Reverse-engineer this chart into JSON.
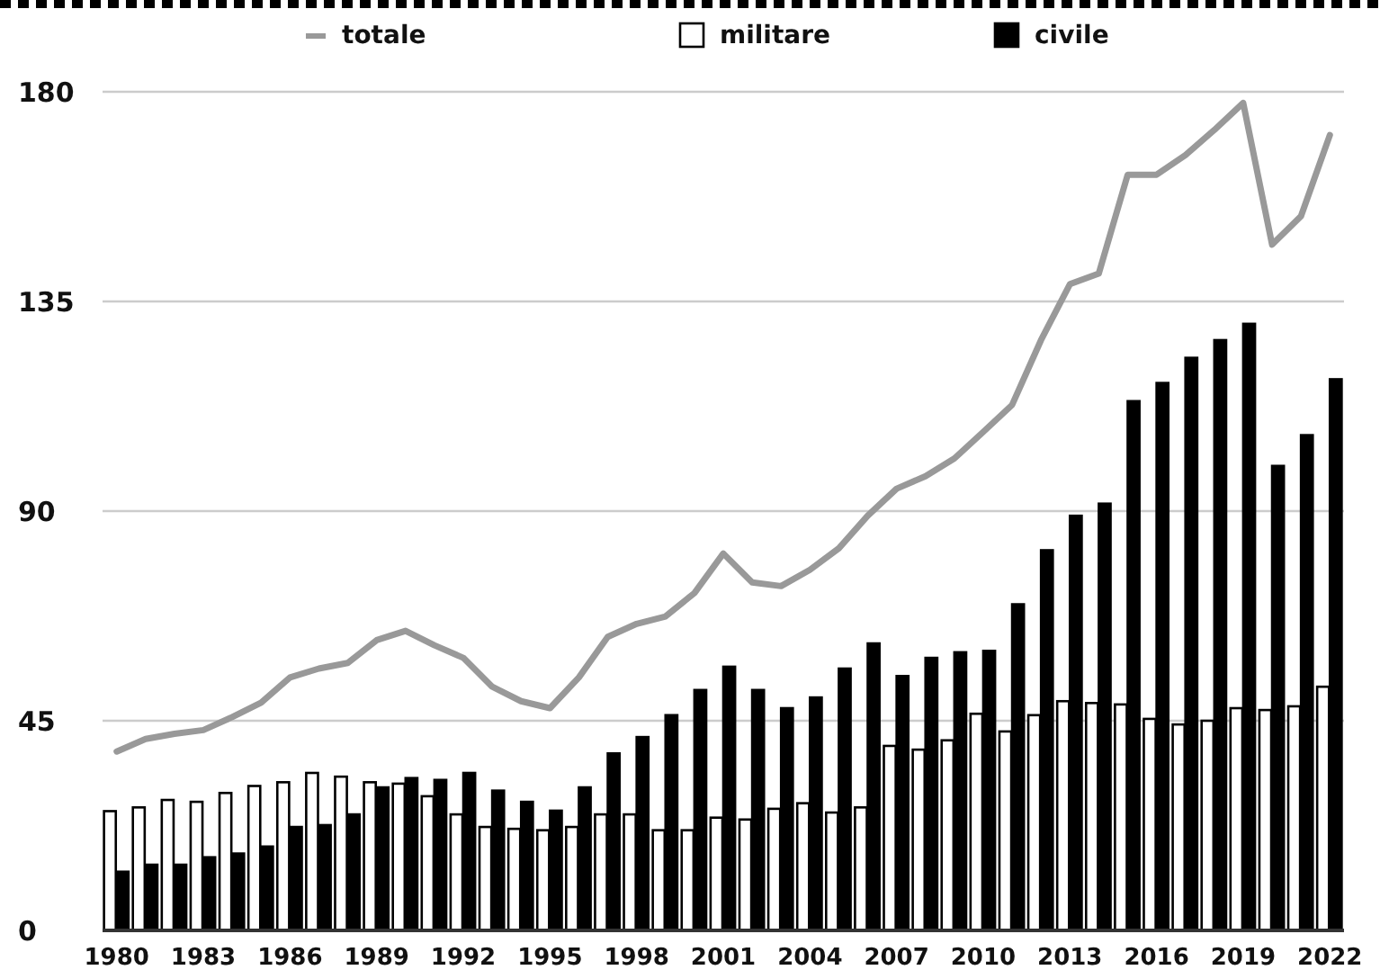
{
  "chart_data": {
    "type": "bar",
    "categories": [
      "1980",
      null,
      null,
      "1983",
      null,
      null,
      "1986",
      null,
      null,
      "1989",
      null,
      null,
      "1992",
      null,
      null,
      "1995",
      null,
      null,
      "1998",
      null,
      null,
      "2001",
      null,
      null,
      "2004",
      null,
      null,
      "2007",
      null,
      null,
      "2010",
      null,
      null,
      "2013",
      null,
      null,
      "2016",
      null,
      null,
      "2019",
      null,
      null,
      "2022"
    ],
    "series": [
      {
        "name": "totale",
        "type": "line",
        "color": "#999999",
        "values": [
          38.4,
          41.1,
          42.2,
          43,
          45.8,
          48.9,
          54.3,
          56.2,
          57.4,
          62.3,
          64.3,
          61.2,
          58.5,
          52.3,
          49.2,
          47.7,
          54.3,
          63,
          65.8,
          67.4,
          72.4,
          80.9,
          74.7,
          73.9,
          77.4,
          82,
          89,
          94.8,
          97.5,
          101.3,
          107,
          112.8,
          126.7,
          138.7,
          141,
          162.2,
          162.2,
          166.4,
          171.8,
          177.6,
          147.2,
          153.3,
          170.7
        ]
      },
      {
        "name": "militare",
        "color": "#ffffff",
        "values": [
          25.6,
          26.4,
          28,
          27.6,
          29.5,
          31,
          31.8,
          33.8,
          33,
          31.8,
          31.5,
          28.8,
          24.9,
          22.2,
          21.8,
          21.5,
          22.2,
          24.9,
          24.9,
          21.5,
          21.5,
          24.2,
          23.8,
          26.1,
          27.3,
          25.3,
          26.4,
          39.6,
          38.8,
          40.8,
          46.5,
          42.7,
          46.2,
          49.2,
          48.8,
          48.5,
          45.4,
          44.2,
          45,
          47.7,
          47.3,
          48.1,
          52.3
        ]
      },
      {
        "name": "civile",
        "color": "#000000",
        "values": [
          12.6,
          14.1,
          14.1,
          15.7,
          16.5,
          18,
          22.2,
          22.6,
          24.9,
          30.7,
          32.7,
          32.3,
          33.8,
          30,
          27.6,
          25.7,
          30.7,
          38,
          41.5,
          46.2,
          51.6,
          56.6,
          51.6,
          47.7,
          50,
          56.2,
          61.6,
          54.6,
          58.5,
          59.7,
          60,
          70,
          81.6,
          89,
          91.6,
          113.6,
          117.5,
          122.9,
          126.7,
          130.2,
          99.7,
          106.3,
          118.3
        ]
      }
    ],
    "ylim": [
      0,
      180
    ],
    "yticks": [
      0,
      45,
      90,
      135,
      180
    ],
    "grid": "y",
    "legend": "top"
  }
}
